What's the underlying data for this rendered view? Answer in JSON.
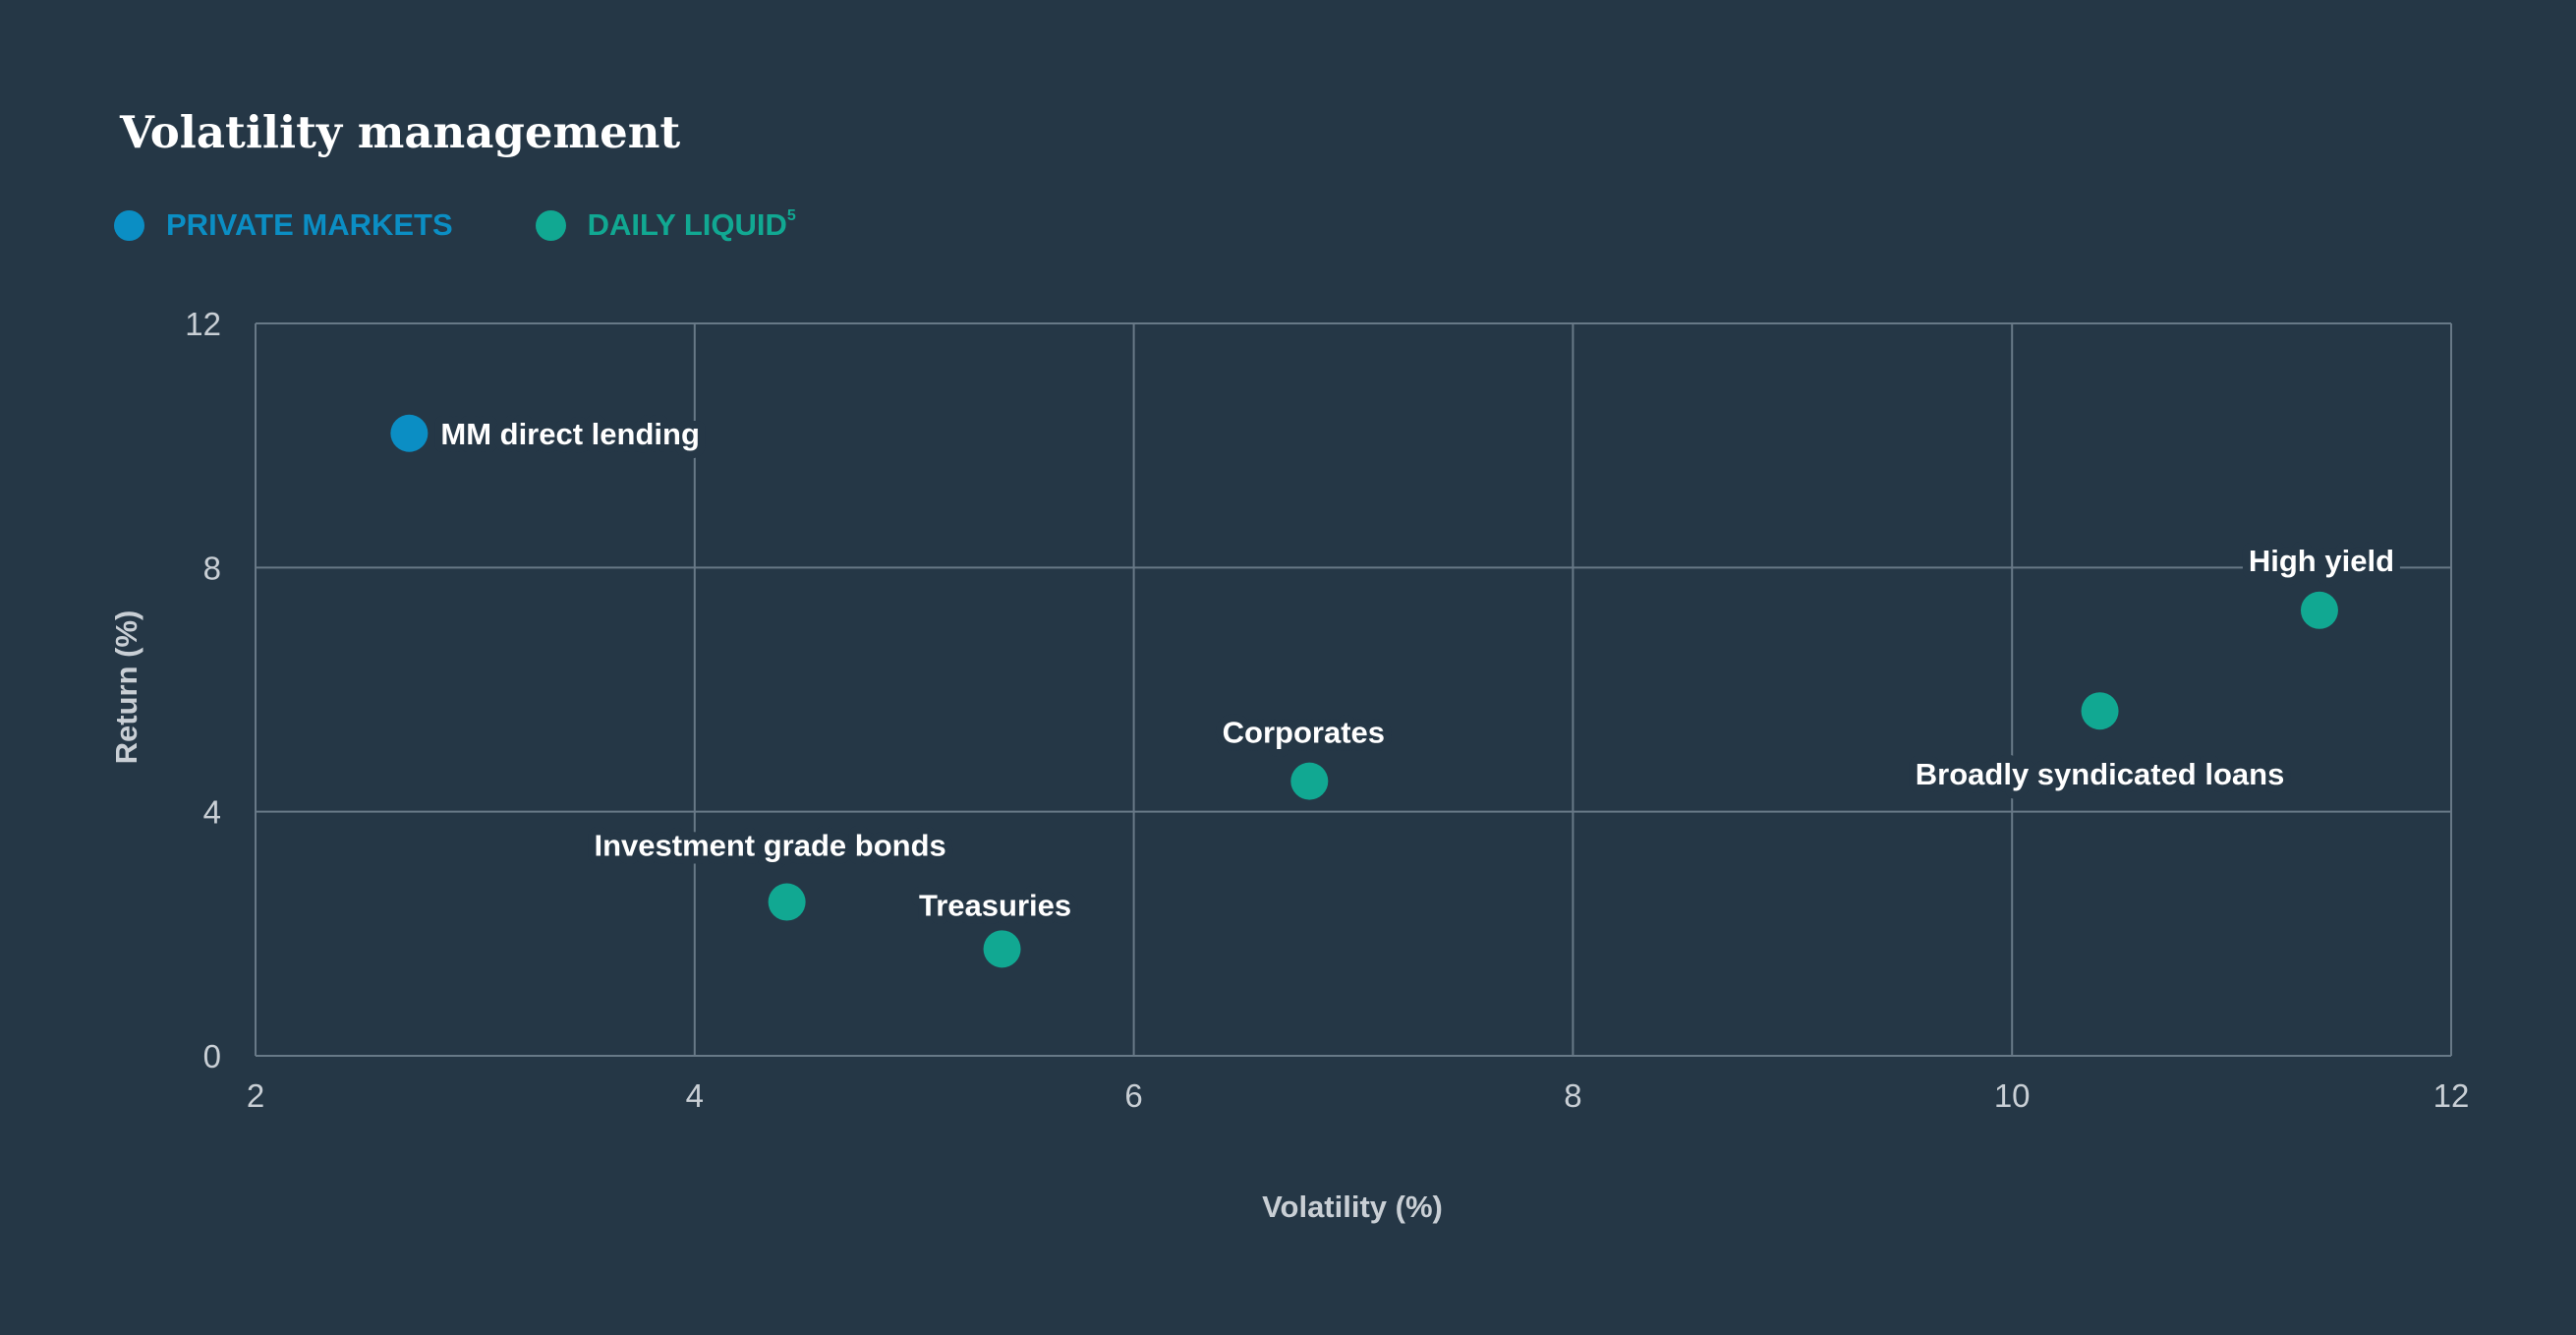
{
  "title": "Volatility management",
  "legend": [
    {
      "label": "PRIVATE MARKETS",
      "sup": "",
      "color": "#0b8ec4"
    },
    {
      "label": "DAILY LIQUID",
      "sup": "5",
      "color": "#11a892"
    }
  ],
  "chart_data": {
    "type": "scatter",
    "xlabel": "Volatility (%)",
    "ylabel": "Return (%)",
    "xlim": [
      2,
      12
    ],
    "ylim": [
      0,
      12
    ],
    "xticks": [
      "2",
      "4",
      "6",
      "8",
      "10",
      "12"
    ],
    "yticks": [
      "0",
      "4",
      "8",
      "12"
    ],
    "grid": true,
    "legend_position": "top-left",
    "series": [
      {
        "name": "PRIVATE MARKETS",
        "color": "#0b8ec4",
        "points": [
          {
            "label": "MM direct lending",
            "x": 2.7,
            "y": 10.2
          }
        ]
      },
      {
        "name": "DAILY LIQUID",
        "color": "#11a892",
        "points": [
          {
            "label": "High yield",
            "x": 11.4,
            "y": 7.3
          },
          {
            "label": "Broadly syndicated loans",
            "x": 10.4,
            "y": 5.65
          },
          {
            "label": "Corporates",
            "x": 6.8,
            "y": 4.5
          },
          {
            "label": "Investment grade bonds",
            "x": 4.42,
            "y": 2.52
          },
          {
            "label": "Treasuries",
            "x": 5.4,
            "y": 1.75
          }
        ]
      }
    ]
  }
}
